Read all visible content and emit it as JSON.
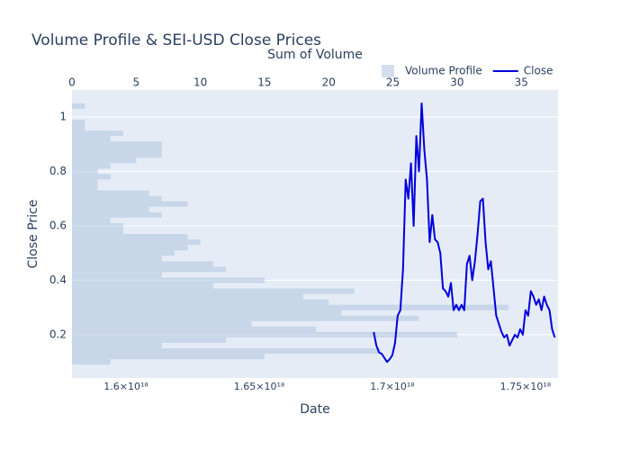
{
  "chart_data": {
    "type": "combo",
    "title": "Volume Profile & SEI-USD Close Prices",
    "xlabel": "Date",
    "x2label": "Sum of Volume",
    "ylabel": "Close Price",
    "xlim": [
      1.5797e+18,
      1.7622e+18
    ],
    "xticks": [
      {
        "value": 1.6e+18,
        "label": "1.6×10¹⁸"
      },
      {
        "value": 1.65e+18,
        "label": "1.65×10¹⁸"
      },
      {
        "value": 1.7e+18,
        "label": "1.7×10¹⁸"
      },
      {
        "value": 1.75e+18,
        "label": "1.75×10¹⁸"
      }
    ],
    "x2lim": [
      0,
      37.86
    ],
    "x2ticks": [
      0,
      5,
      10,
      15,
      20,
      25,
      30,
      35
    ],
    "ylim": [
      0.041,
      1.099
    ],
    "yticks": [
      0.2,
      0.4,
      0.6,
      0.8,
      1
    ],
    "grid": true,
    "legend_position": "top right",
    "series": [
      {
        "name": "Volume Profile",
        "type": "histogram",
        "axis": "x2",
        "color": "#b0c4de",
        "bins": [
          0.09,
          0.11,
          0.13,
          0.15,
          0.17,
          0.19,
          0.21,
          0.23,
          0.25,
          0.27,
          0.29,
          0.31,
          0.33,
          0.35,
          0.37,
          0.39,
          0.41,
          0.43,
          0.45,
          0.47,
          0.49,
          0.51,
          0.53,
          0.55,
          0.57,
          0.59,
          0.61,
          0.63,
          0.65,
          0.67,
          0.69,
          0.71,
          0.73,
          0.75,
          0.77,
          0.79,
          0.81,
          0.83,
          0.85,
          0.87,
          0.89,
          0.91,
          0.93,
          0.95,
          0.97,
          0.99,
          1.01,
          1.03,
          1.05
        ],
        "values": [
          3,
          15,
          24,
          7,
          12,
          30,
          19,
          14,
          27,
          21,
          34,
          20,
          18,
          22,
          11,
          15,
          7,
          12,
          11,
          7,
          8,
          9,
          10,
          9,
          4,
          4,
          3,
          7,
          6,
          9,
          7,
          6,
          2,
          2,
          3,
          2,
          3,
          5,
          7,
          7,
          7,
          3,
          4,
          1,
          1,
          0,
          0,
          1
        ]
      },
      {
        "name": "Close",
        "type": "line",
        "color": "#0000dd",
        "x": [
          1.693e+18,
          1.694e+18,
          1.695e+18,
          1.696e+18,
          1.697e+18,
          1.698e+18,
          1.699e+18,
          1.7e+18,
          1.701e+18,
          1.702e+18,
          1.703e+18,
          1.704e+18,
          1.705e+18,
          1.706e+18,
          1.707e+18,
          1.708e+18,
          1.709e+18,
          1.71e+18,
          1.711e+18,
          1.712e+18,
          1.713e+18,
          1.714e+18,
          1.715e+18,
          1.716e+18,
          1.717e+18,
          1.718e+18,
          1.719e+18,
          1.72e+18,
          1.721e+18,
          1.722e+18,
          1.723e+18,
          1.724e+18,
          1.725e+18,
          1.726e+18,
          1.727e+18,
          1.728e+18,
          1.729e+18,
          1.73e+18,
          1.731e+18,
          1.732e+18,
          1.733e+18,
          1.734e+18,
          1.735e+18,
          1.736e+18,
          1.737e+18,
          1.738e+18,
          1.739e+18,
          1.74e+18,
          1.741e+18,
          1.742e+18,
          1.743e+18,
          1.744e+18,
          1.745e+18,
          1.746e+18,
          1.747e+18,
          1.748e+18,
          1.749e+18,
          1.75e+18,
          1.751e+18,
          1.752e+18,
          1.753e+18,
          1.754e+18,
          1.755e+18,
          1.756e+18,
          1.757e+18,
          1.758e+18,
          1.759e+18,
          1.76e+18,
          1.761e+18
        ],
        "values": [
          0.21,
          0.16,
          0.135,
          0.13,
          0.115,
          0.1,
          0.11,
          0.125,
          0.17,
          0.27,
          0.29,
          0.44,
          0.77,
          0.7,
          0.83,
          0.6,
          0.93,
          0.8,
          1.05,
          0.88,
          0.77,
          0.54,
          0.64,
          0.55,
          0.54,
          0.5,
          0.37,
          0.36,
          0.34,
          0.39,
          0.29,
          0.31,
          0.29,
          0.31,
          0.29,
          0.46,
          0.49,
          0.4,
          0.47,
          0.57,
          0.69,
          0.7,
          0.54,
          0.44,
          0.47,
          0.37,
          0.27,
          0.24,
          0.21,
          0.19,
          0.2,
          0.16,
          0.18,
          0.2,
          0.19,
          0.22,
          0.2,
          0.29,
          0.27,
          0.36,
          0.34,
          0.31,
          0.33,
          0.29,
          0.34,
          0.31,
          0.29,
          0.22,
          0.19
        ]
      }
    ]
  }
}
